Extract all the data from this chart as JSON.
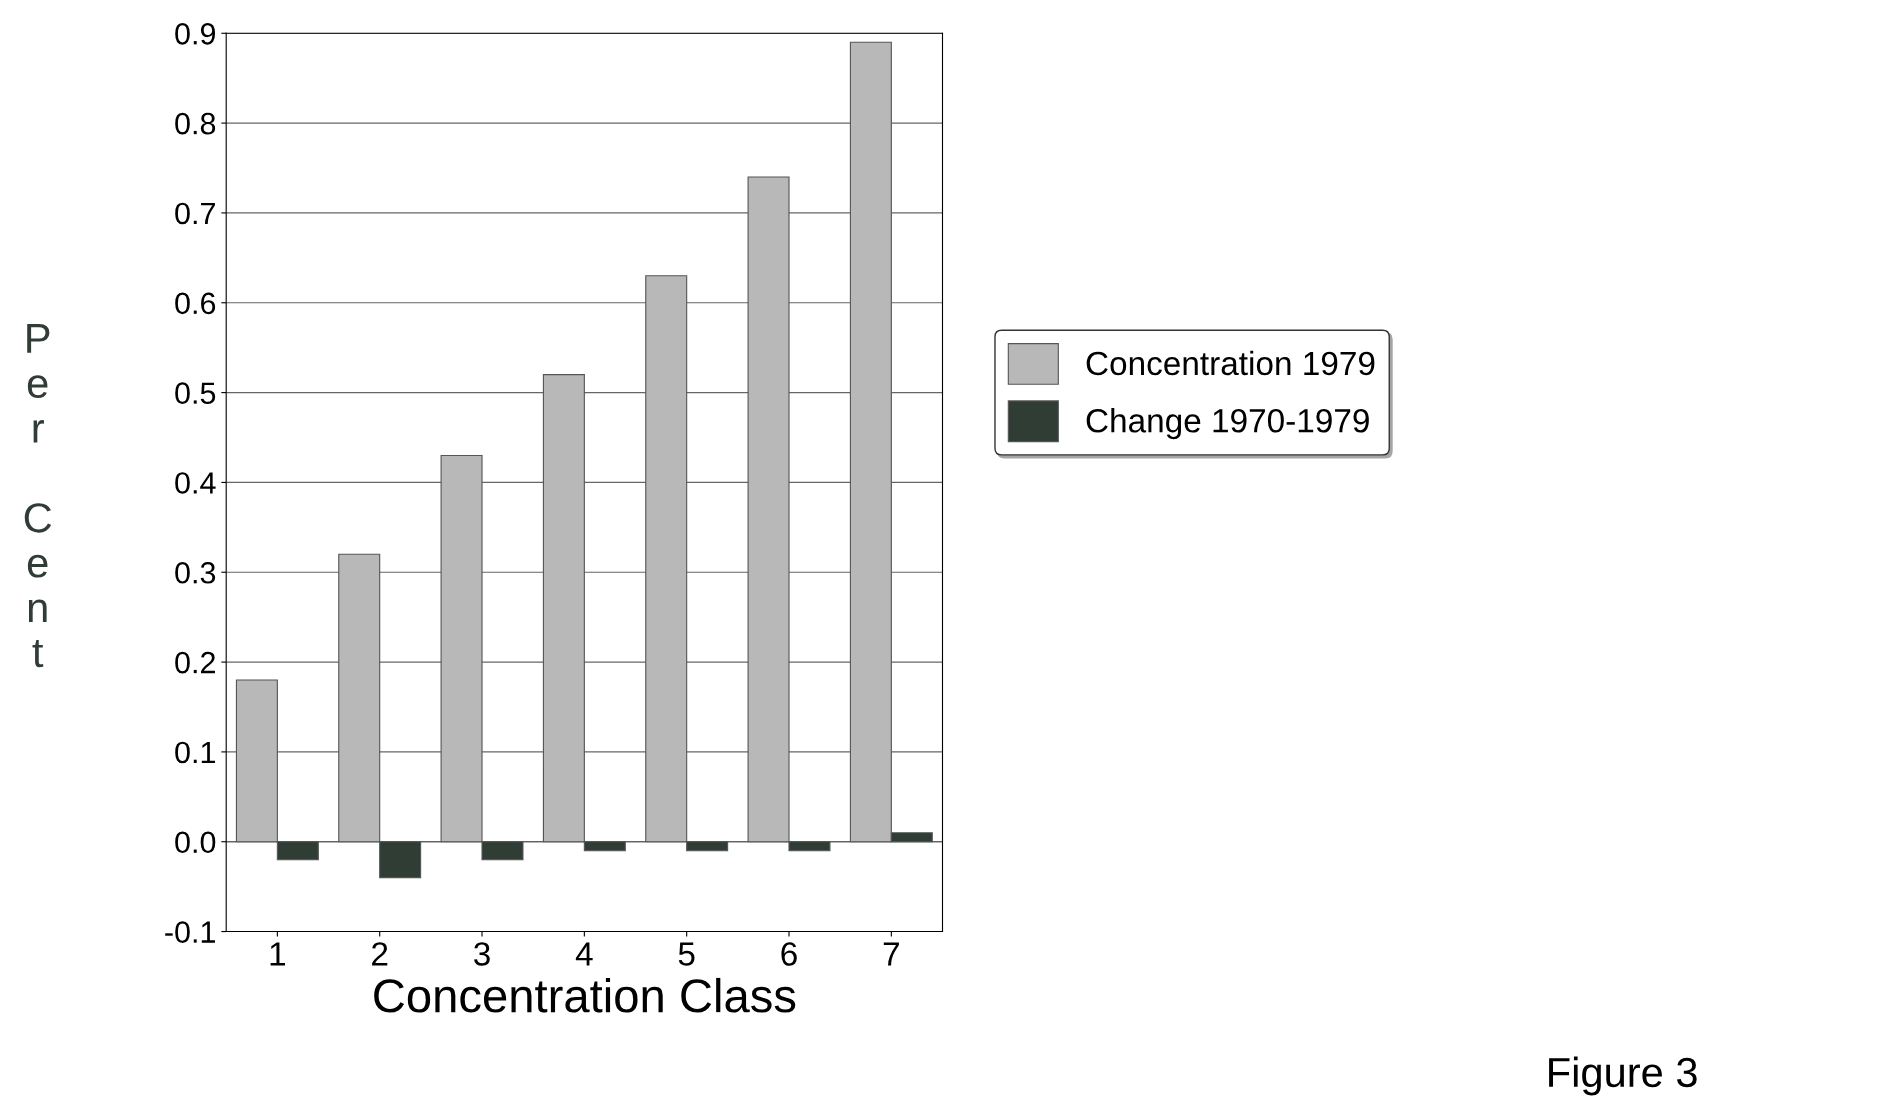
{
  "chart_data": {
    "type": "bar",
    "xlabel": "Concentration Class",
    "ylabel": "Per Cent",
    "categories": [
      "1",
      "2",
      "3",
      "4",
      "5",
      "6",
      "7"
    ],
    "series": [
      {
        "name": "Concentration 1979",
        "color": "#b8b8b8",
        "values": [
          0.18,
          0.32,
          0.43,
          0.52,
          0.63,
          0.74,
          0.89
        ]
      },
      {
        "name": "Change 1970-1979",
        "color": "#2f3d35",
        "values": [
          -0.02,
          -0.04,
          -0.02,
          -0.01,
          -0.01,
          -0.01,
          0.01
        ]
      }
    ],
    "ylim": [
      -0.1,
      0.9
    ],
    "yticks": [
      {
        "value": -0.1,
        "label": "-0.1"
      },
      {
        "value": 0,
        "label": "0.0"
      },
      {
        "value": 0.1,
        "label": "0.1"
      },
      {
        "value": 0.2,
        "label": "0.2"
      },
      {
        "value": 0.3,
        "label": "0.3"
      },
      {
        "value": 0.4,
        "label": "0.4"
      },
      {
        "value": 0.5,
        "label": "0.5"
      },
      {
        "value": 0.6,
        "label": "0.6"
      },
      {
        "value": 0.7,
        "label": "0.7"
      },
      {
        "value": 0.8,
        "label": "0.8"
      },
      {
        "value": 0.9,
        "label": "0.9"
      }
    ],
    "grid": "y",
    "legend": "right",
    "annotations": [
      "Figure 3"
    ]
  }
}
